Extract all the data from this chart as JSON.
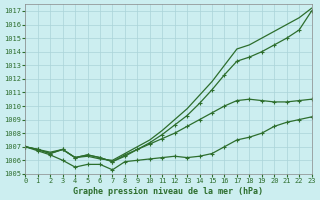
{
  "title": "Graphe pression niveau de la mer (hPa)",
  "xlim": [
    0,
    23
  ],
  "ylim": [
    1005,
    1017.5
  ],
  "yticks": [
    1005,
    1006,
    1007,
    1008,
    1009,
    1010,
    1011,
    1012,
    1013,
    1014,
    1015,
    1016,
    1017
  ],
  "xticks": [
    0,
    1,
    2,
    3,
    4,
    5,
    6,
    7,
    8,
    9,
    10,
    11,
    12,
    13,
    14,
    15,
    16,
    17,
    18,
    19,
    20,
    21,
    22,
    23
  ],
  "background_color": "#cceef0",
  "grid_color": "#aad4d8",
  "line_color": "#2d6e2d",
  "series": [
    {
      "y": [
        1007.0,
        1006.8,
        1006.6,
        1006.8,
        1006.2,
        1006.3,
        1006.1,
        1006.0,
        1006.5,
        1007.0,
        1007.5,
        1008.2,
        1009.0,
        1009.8,
        1010.8,
        1011.8,
        1013.0,
        1014.2,
        1014.5,
        1015.0,
        1015.5,
        1016.0,
        1016.5,
        1017.2
      ],
      "marker": null,
      "linewidth": 0.9
    },
    {
      "y": [
        1007.0,
        1006.8,
        1006.5,
        1006.8,
        1006.2,
        1006.4,
        1006.2,
        1005.9,
        1006.3,
        1006.8,
        1007.3,
        1007.9,
        1008.6,
        1009.3,
        1010.2,
        1011.2,
        1012.3,
        1013.3,
        1013.6,
        1014.0,
        1014.5,
        1015.0,
        1015.6,
        1017.0
      ],
      "marker": "+",
      "linewidth": 0.9
    },
    {
      "y": [
        1007.0,
        1006.8,
        1006.5,
        1006.8,
        1006.2,
        1006.4,
        1006.2,
        1005.9,
        1006.4,
        1006.8,
        1007.2,
        1007.6,
        1008.0,
        1008.5,
        1009.0,
        1009.5,
        1010.0,
        1010.4,
        1010.5,
        1010.4,
        1010.3,
        1010.3,
        1010.4,
        1010.5
      ],
      "marker": "+",
      "linewidth": 0.9
    },
    {
      "y": [
        1007.0,
        1006.7,
        1006.4,
        1006.0,
        1005.5,
        1005.7,
        1005.7,
        1005.3,
        1005.9,
        1006.0,
        1006.1,
        1006.2,
        1006.3,
        1006.2,
        1006.3,
        1006.5,
        1007.0,
        1007.5,
        1007.7,
        1008.0,
        1008.5,
        1008.8,
        1009.0,
        1009.2
      ],
      "marker": "+",
      "linewidth": 0.9
    }
  ]
}
